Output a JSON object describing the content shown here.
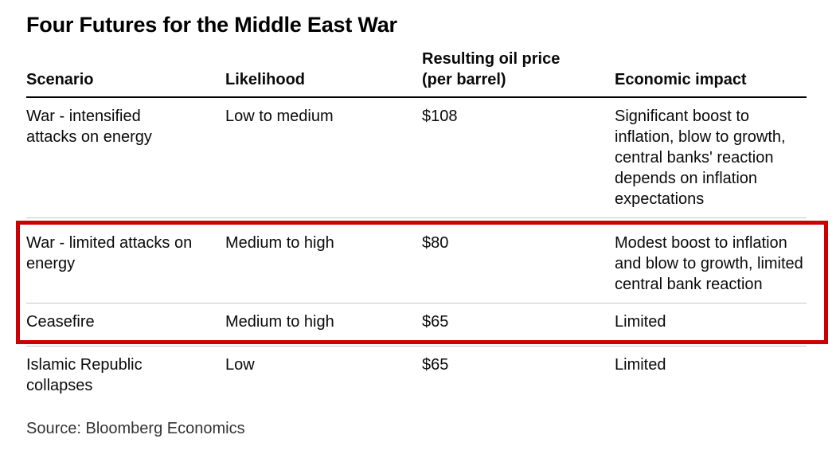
{
  "title": "Four Futures for the Middle East War",
  "source": "Source: Bloomberg Economics",
  "highlight_color": "#cc0000",
  "header": {
    "scenario": "Scenario",
    "likelihood": "Likelihood",
    "oil_price": "Resulting oil price\n(per barrel)",
    "impact": "Economic impact"
  },
  "chart_data": {
    "type": "table",
    "title": "Four Futures for the Middle East War",
    "columns": [
      "Scenario",
      "Likelihood",
      "Resulting oil price (per barrel)",
      "Economic impact"
    ],
    "rows": [
      {
        "scenario": "War - intensified attacks on energy",
        "likelihood": "Low to medium",
        "oil_price": "$108",
        "impact": "Significant boost to inflation, blow to growth, central banks' reaction depends on inflation expectations"
      },
      {
        "scenario": "War - limited attacks on energy",
        "likelihood": "Medium to high",
        "oil_price": "$80",
        "impact": "Modest boost to inflation and blow to growth, limited central bank reaction"
      },
      {
        "scenario": "Ceasefire",
        "likelihood": "Medium to high",
        "oil_price": "$65",
        "impact": "Limited"
      },
      {
        "scenario": "Islamic Republic collapses",
        "likelihood": "Low",
        "oil_price": "$65",
        "impact": "Limited"
      }
    ],
    "highlighted_rows": [
      1,
      2
    ],
    "legend": "off",
    "grid": "horizontal-separators",
    "source": "Source: Bloomberg Economics"
  }
}
